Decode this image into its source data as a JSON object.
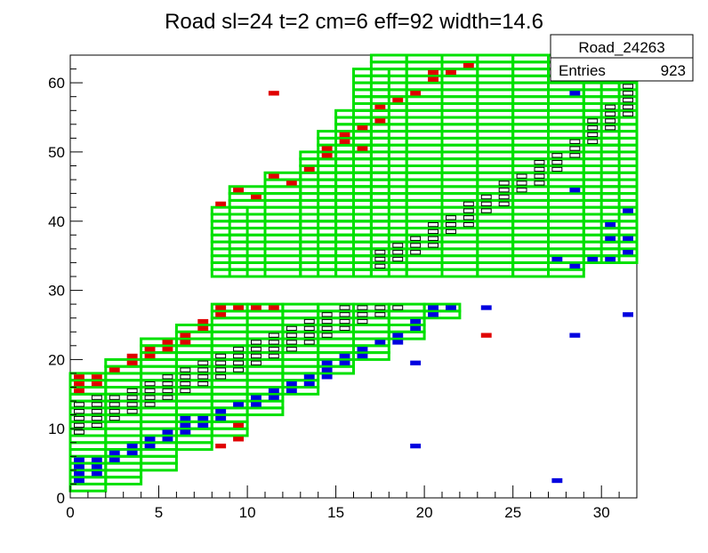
{
  "chart_data": {
    "type": "heatmap",
    "title": "Road sl=24 t=2 cm=6 eff=92 width=14.6",
    "xlabel": "",
    "ylabel": "",
    "xlim": [
      0,
      32
    ],
    "ylim": [
      0,
      64
    ],
    "x_ticks": [
      "0",
      "5",
      "10",
      "15",
      "20",
      "25",
      "30"
    ],
    "y_ticks": [
      "0",
      "10",
      "20",
      "30",
      "40",
      "50",
      "60"
    ],
    "stats_box": {
      "name": "Road_24263",
      "entries_label": "Entries",
      "entries_value": "923"
    },
    "colors": {
      "road_outline": "#00e000",
      "core_hits": "#000000",
      "upper_hits": "#e00000",
      "lower_hits": "#0000e0"
    },
    "road_bands": [
      {
        "x0": 0,
        "ylo": 1,
        "yhi": 18
      },
      {
        "x0": 2,
        "ylo": 2,
        "yhi": 20
      },
      {
        "x0": 4,
        "ylo": 4,
        "yhi": 23
      },
      {
        "x0": 6,
        "ylo": 7,
        "yhi": 25
      },
      {
        "x0": 8,
        "ylo": 9,
        "yhi": 28
      },
      {
        "x0": 10,
        "ylo": 12,
        "yhi": 28
      },
      {
        "x0": 12,
        "ylo": 15,
        "yhi": 28
      },
      {
        "x0": 14,
        "ylo": 18,
        "yhi": 28
      },
      {
        "x0": 16,
        "ylo": 20,
        "yhi": 28
      },
      {
        "x0": 18,
        "ylo": 23,
        "yhi": 28
      },
      {
        "x0": 20,
        "ylo": 26,
        "yhi": 28
      },
      {
        "x0": 8,
        "ylo": 32,
        "yhi": 42
      },
      {
        "x0": 9,
        "ylo": 32,
        "yhi": 45
      },
      {
        "x0": 11,
        "ylo": 32,
        "yhi": 47
      },
      {
        "x0": 13,
        "ylo": 32,
        "yhi": 50
      },
      {
        "x0": 14,
        "ylo": 32,
        "yhi": 53
      },
      {
        "x0": 15,
        "ylo": 32,
        "yhi": 56
      },
      {
        "x0": 16,
        "ylo": 32,
        "yhi": 62
      },
      {
        "x0": 17,
        "ylo": 32,
        "yhi": 64
      },
      {
        "x0": 19,
        "ylo": 32,
        "yhi": 64
      },
      {
        "x0": 21,
        "ylo": 32,
        "yhi": 64
      },
      {
        "x0": 23,
        "ylo": 32,
        "yhi": 64
      },
      {
        "x0": 25,
        "ylo": 32,
        "yhi": 64
      },
      {
        "x0": 27,
        "ylo": 32,
        "yhi": 64
      },
      {
        "x0": 29,
        "ylo": 34,
        "yhi": 64
      },
      {
        "x0": 30,
        "ylo": 34,
        "yhi": 64
      }
    ],
    "core_hits": [
      [
        0,
        9
      ],
      [
        0,
        10
      ],
      [
        0,
        11
      ],
      [
        0,
        12
      ],
      [
        0,
        13
      ],
      [
        1,
        10
      ],
      [
        1,
        11
      ],
      [
        1,
        12
      ],
      [
        1,
        13
      ],
      [
        1,
        14
      ],
      [
        2,
        11
      ],
      [
        2,
        12
      ],
      [
        2,
        13
      ],
      [
        2,
        14
      ],
      [
        3,
        12
      ],
      [
        3,
        13
      ],
      [
        3,
        14
      ],
      [
        3,
        15
      ],
      [
        4,
        13
      ],
      [
        4,
        14
      ],
      [
        4,
        15
      ],
      [
        4,
        16
      ],
      [
        5,
        14
      ],
      [
        5,
        15
      ],
      [
        5,
        16
      ],
      [
        5,
        17
      ],
      [
        6,
        15
      ],
      [
        6,
        16
      ],
      [
        6,
        17
      ],
      [
        6,
        18
      ],
      [
        7,
        16
      ],
      [
        7,
        17
      ],
      [
        7,
        18
      ],
      [
        7,
        19
      ],
      [
        8,
        17
      ],
      [
        8,
        18
      ],
      [
        8,
        19
      ],
      [
        8,
        20
      ],
      [
        9,
        18
      ],
      [
        9,
        19
      ],
      [
        9,
        20
      ],
      [
        9,
        21
      ],
      [
        10,
        19
      ],
      [
        10,
        20
      ],
      [
        10,
        21
      ],
      [
        10,
        22
      ],
      [
        11,
        20
      ],
      [
        11,
        21
      ],
      [
        11,
        22
      ],
      [
        11,
        23
      ],
      [
        12,
        21
      ],
      [
        12,
        22
      ],
      [
        12,
        23
      ],
      [
        12,
        24
      ],
      [
        13,
        22
      ],
      [
        13,
        23
      ],
      [
        13,
        24
      ],
      [
        13,
        25
      ],
      [
        14,
        23
      ],
      [
        14,
        24
      ],
      [
        14,
        25
      ],
      [
        14,
        26
      ],
      [
        15,
        24
      ],
      [
        15,
        25
      ],
      [
        15,
        26
      ],
      [
        15,
        27
      ],
      [
        16,
        25
      ],
      [
        16,
        26
      ],
      [
        16,
        27
      ],
      [
        17,
        26
      ],
      [
        17,
        27
      ],
      [
        18,
        27
      ],
      [
        17,
        33
      ],
      [
        17,
        34
      ],
      [
        17,
        35
      ],
      [
        18,
        34
      ],
      [
        18,
        35
      ],
      [
        18,
        36
      ],
      [
        19,
        35
      ],
      [
        19,
        36
      ],
      [
        19,
        37
      ],
      [
        20,
        36
      ],
      [
        20,
        37
      ],
      [
        20,
        38
      ],
      [
        20,
        39
      ],
      [
        21,
        38
      ],
      [
        21,
        39
      ],
      [
        21,
        40
      ],
      [
        22,
        39
      ],
      [
        22,
        40
      ],
      [
        22,
        41
      ],
      [
        22,
        42
      ],
      [
        23,
        41
      ],
      [
        23,
        42
      ],
      [
        23,
        43
      ],
      [
        24,
        42
      ],
      [
        24,
        43
      ],
      [
        24,
        44
      ],
      [
        24,
        45
      ],
      [
        25,
        44
      ],
      [
        25,
        45
      ],
      [
        25,
        46
      ],
      [
        26,
        45
      ],
      [
        26,
        46
      ],
      [
        26,
        47
      ],
      [
        26,
        48
      ],
      [
        27,
        47
      ],
      [
        27,
        48
      ],
      [
        27,
        49
      ],
      [
        28,
        49
      ],
      [
        28,
        50
      ],
      [
        28,
        51
      ],
      [
        29,
        51
      ],
      [
        29,
        52
      ],
      [
        29,
        53
      ],
      [
        29,
        54
      ],
      [
        30,
        53
      ],
      [
        30,
        54
      ],
      [
        30,
        55
      ],
      [
        30,
        56
      ],
      [
        31,
        55
      ],
      [
        31,
        56
      ],
      [
        31,
        57
      ],
      [
        31,
        58
      ],
      [
        31,
        59
      ]
    ],
    "upper_hits": [
      [
        0,
        15
      ],
      [
        0,
        16
      ],
      [
        0,
        17
      ],
      [
        1,
        16
      ],
      [
        1,
        17
      ],
      [
        2,
        18
      ],
      [
        3,
        19
      ],
      [
        3,
        20
      ],
      [
        4,
        20
      ],
      [
        4,
        21
      ],
      [
        5,
        21
      ],
      [
        5,
        22
      ],
      [
        6,
        22
      ],
      [
        6,
        23
      ],
      [
        7,
        24
      ],
      [
        7,
        25
      ],
      [
        8,
        26
      ],
      [
        8,
        27
      ],
      [
        9,
        27
      ],
      [
        10,
        27
      ],
      [
        11,
        27
      ],
      [
        9,
        10
      ],
      [
        9,
        8
      ],
      [
        8,
        7
      ],
      [
        8,
        42
      ],
      [
        9,
        44
      ],
      [
        10,
        43
      ],
      [
        11,
        46
      ],
      [
        12,
        45
      ],
      [
        13,
        47
      ],
      [
        14,
        49
      ],
      [
        14,
        50
      ],
      [
        15,
        51
      ],
      [
        15,
        52
      ],
      [
        16,
        50
      ],
      [
        16,
        53
      ],
      [
        17,
        54
      ],
      [
        17,
        56
      ],
      [
        18,
        57
      ],
      [
        19,
        58
      ],
      [
        20,
        60
      ],
      [
        20,
        61
      ],
      [
        21,
        61
      ],
      [
        22,
        62
      ],
      [
        23,
        23
      ],
      [
        11,
        58
      ]
    ],
    "lower_hits": [
      [
        0,
        2
      ],
      [
        0,
        3
      ],
      [
        0,
        4
      ],
      [
        0,
        5
      ],
      [
        1,
        3
      ],
      [
        1,
        4
      ],
      [
        1,
        5
      ],
      [
        2,
        5
      ],
      [
        2,
        6
      ],
      [
        3,
        6
      ],
      [
        3,
        7
      ],
      [
        4,
        7
      ],
      [
        4,
        8
      ],
      [
        5,
        8
      ],
      [
        5,
        9
      ],
      [
        6,
        9
      ],
      [
        6,
        10
      ],
      [
        6,
        11
      ],
      [
        7,
        10
      ],
      [
        7,
        11
      ],
      [
        8,
        11
      ],
      [
        8,
        12
      ],
      [
        9,
        13
      ],
      [
        10,
        13
      ],
      [
        10,
        14
      ],
      [
        11,
        14
      ],
      [
        11,
        15
      ],
      [
        12,
        15
      ],
      [
        12,
        16
      ],
      [
        13,
        16
      ],
      [
        13,
        17
      ],
      [
        14,
        17
      ],
      [
        14,
        18
      ],
      [
        14,
        19
      ],
      [
        15,
        19
      ],
      [
        15,
        20
      ],
      [
        16,
        20
      ],
      [
        16,
        21
      ],
      [
        17,
        22
      ],
      [
        18,
        22
      ],
      [
        18,
        23
      ],
      [
        19,
        24
      ],
      [
        19,
        25
      ],
      [
        20,
        26
      ],
      [
        20,
        27
      ],
      [
        21,
        27
      ],
      [
        23,
        27
      ],
      [
        19,
        7
      ],
      [
        19,
        19
      ],
      [
        27,
        2
      ],
      [
        28,
        23
      ],
      [
        31,
        26
      ],
      [
        27,
        34
      ],
      [
        28,
        33
      ],
      [
        29,
        34
      ],
      [
        30,
        34
      ],
      [
        30,
        37
      ],
      [
        30,
        39
      ],
      [
        31,
        35
      ],
      [
        31,
        37
      ],
      [
        31,
        41
      ],
      [
        28,
        58
      ],
      [
        28,
        44
      ]
    ]
  }
}
